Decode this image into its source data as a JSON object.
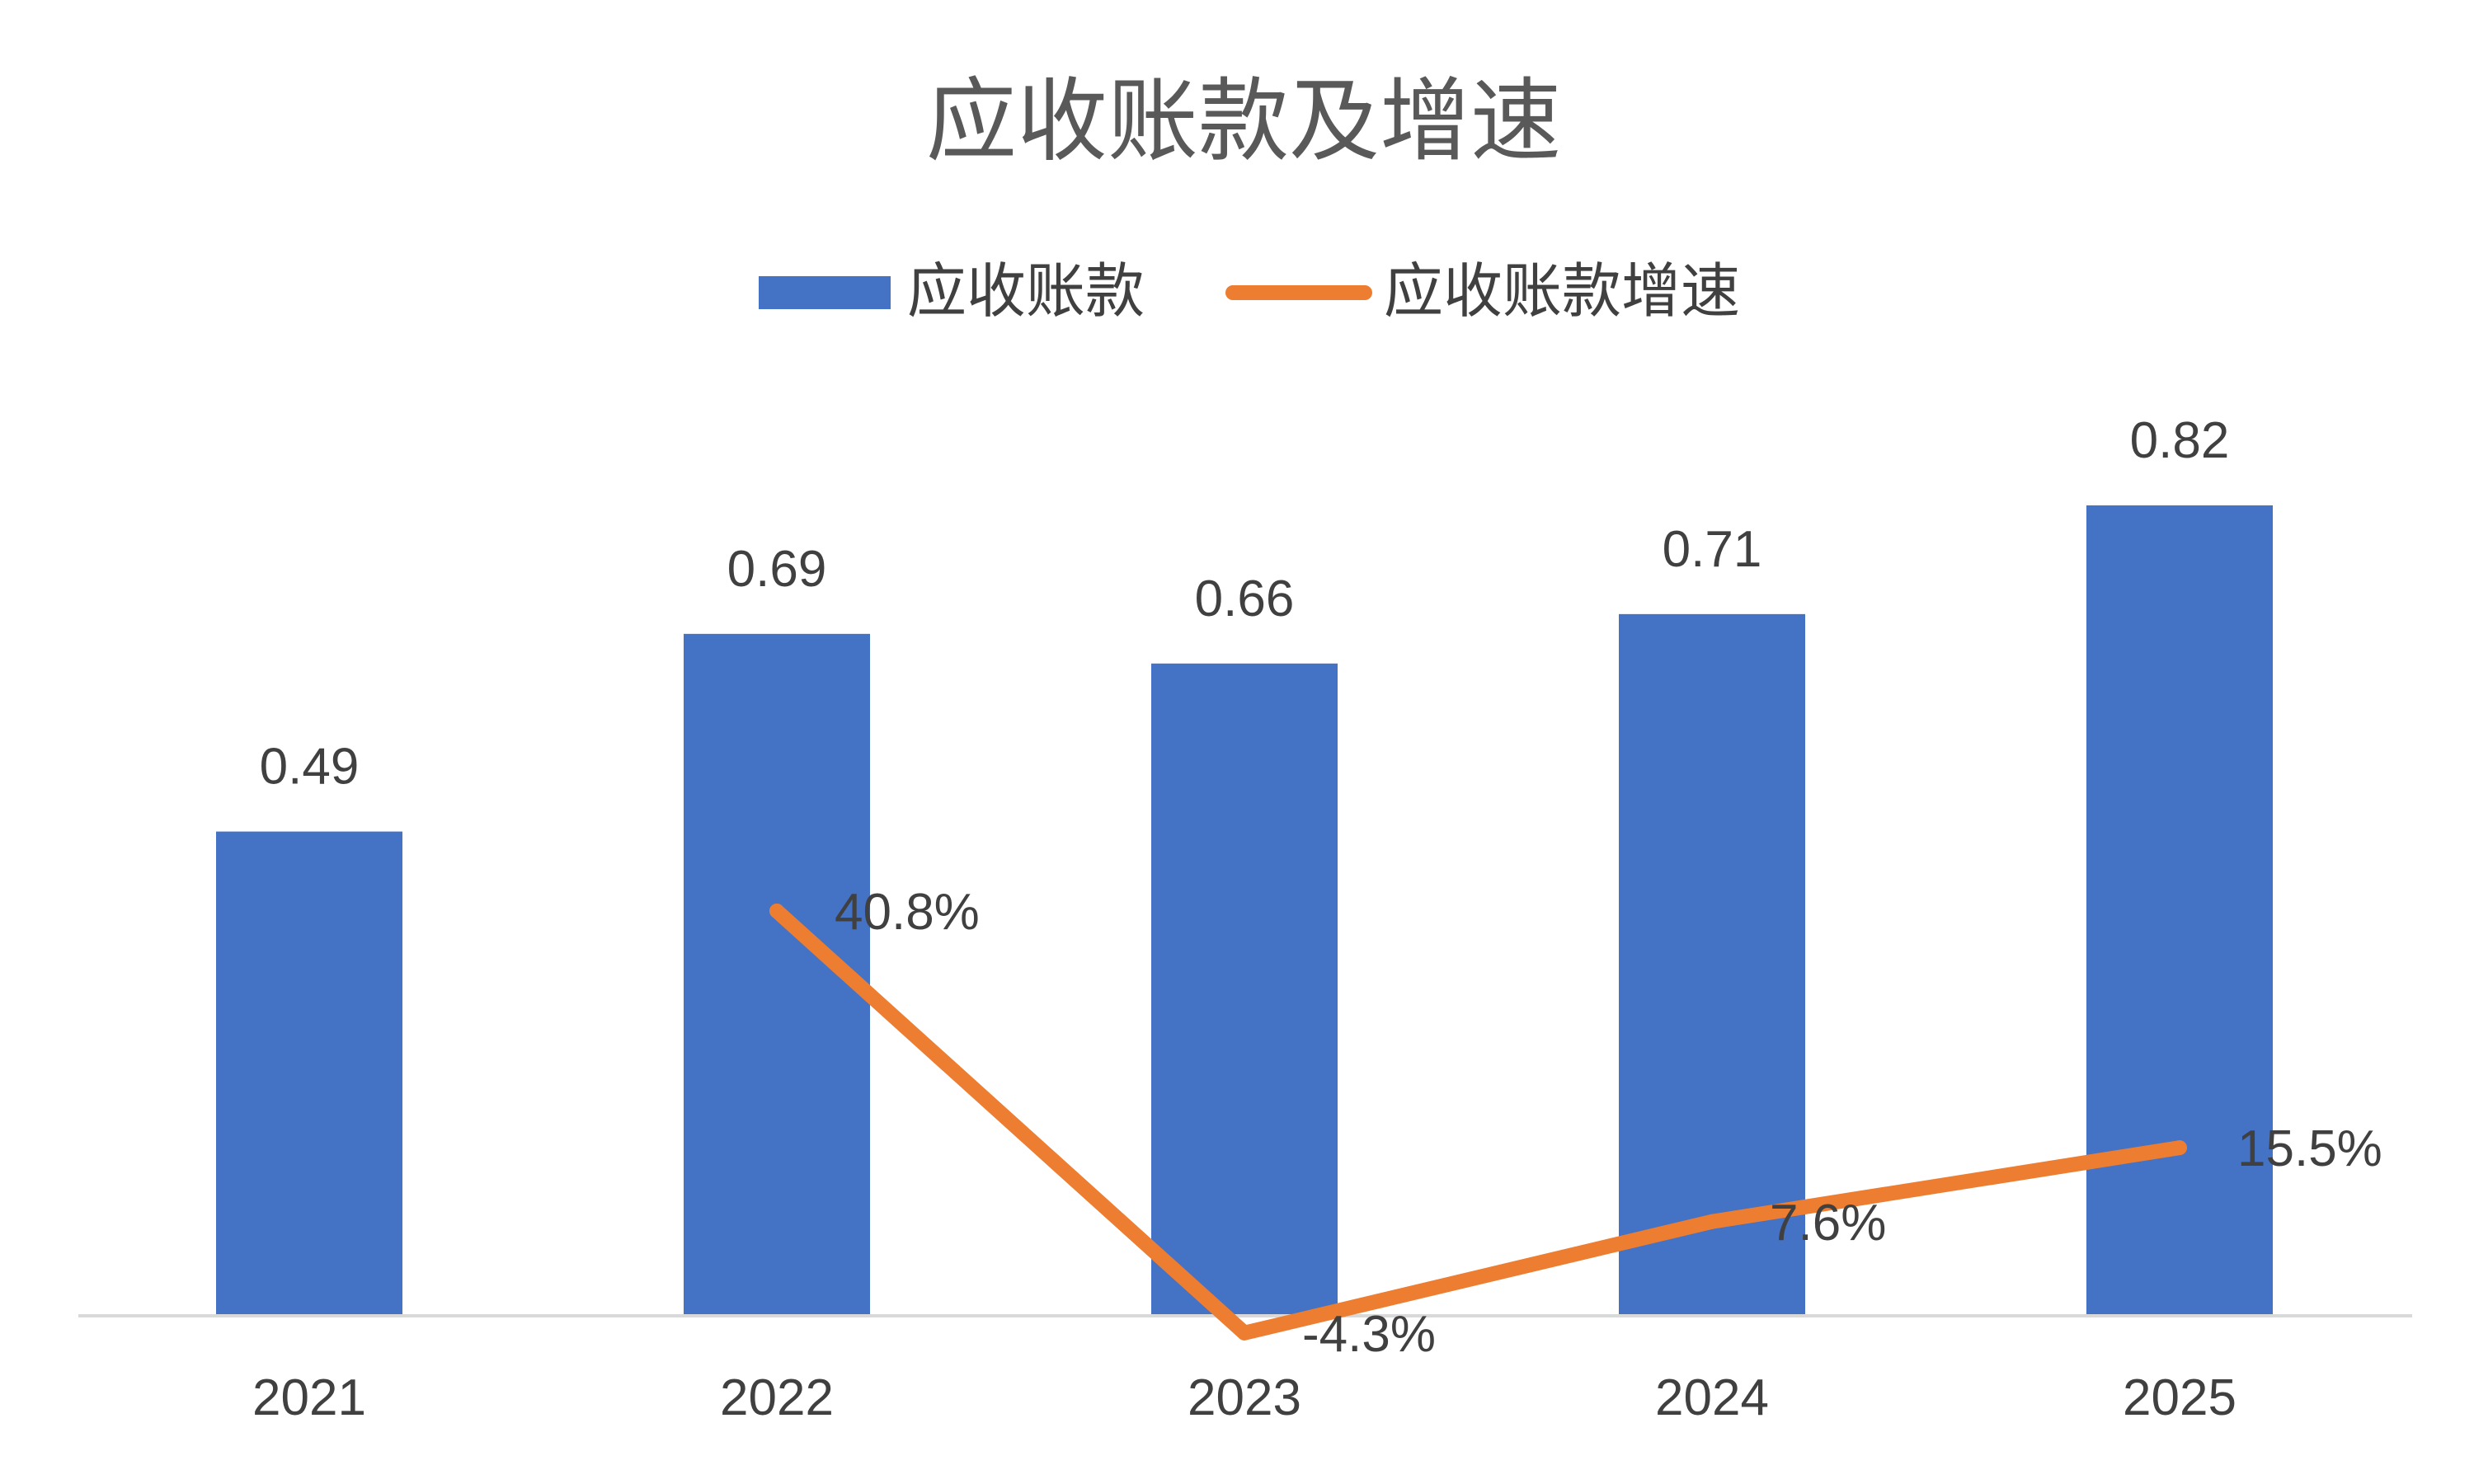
{
  "chart_data": {
    "type": "bar",
    "title": "应收账款及增速",
    "legend_position": "top-center",
    "grid": false,
    "categories": [
      "2021",
      "2022",
      "2023",
      "2024",
      "2025"
    ],
    "series": [
      {
        "name": "应收账款",
        "type": "bar",
        "values": [
          0.49,
          0.69,
          0.66,
          0.71,
          0.82
        ],
        "labels": [
          "0.49",
          "0.69",
          "0.66",
          "0.71",
          "0.82"
        ],
        "color": "#4472C4"
      },
      {
        "name": "应收账款增速",
        "type": "line",
        "values": [
          null,
          40.8,
          -4.3,
          7.6,
          15.5
        ],
        "labels": [
          "",
          "40.8%",
          "-4.3%",
          "7.6%",
          "15.5%"
        ],
        "unit": "%",
        "color": "#ED7D31"
      }
    ],
    "ylim_left": [
      0,
      0.82
    ],
    "ylim_right": [
      -10,
      100
    ]
  }
}
